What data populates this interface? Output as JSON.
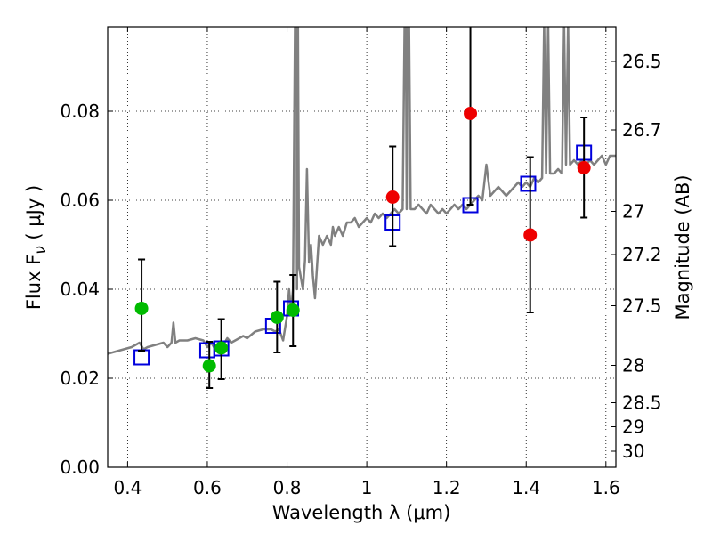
{
  "chart_data": {
    "type": "scatter",
    "xlabel": "Wavelength  λ (μm)",
    "ylabel": "Flux  F",
    "ylabel_subscript": "ν",
    "ylabel_unit": "  ( μJy )",
    "y2label": "Magnitude (AB)",
    "xlim": [
      0.35,
      1.625
    ],
    "ylim": [
      0.0,
      0.099
    ],
    "xticks": [
      0.4,
      0.6,
      0.8,
      1.0,
      1.2,
      1.4,
      1.6
    ],
    "xtick_labels": [
      "0.4",
      "0.6",
      "0.8",
      "1",
      "1.2",
      "1.4",
      "1.6"
    ],
    "yticks": [
      0.0,
      0.02,
      0.04,
      0.06,
      0.08
    ],
    "ytick_labels": [
      "0.00",
      "0.02",
      "0.04",
      "0.06",
      "0.08"
    ],
    "y2ticks": [
      {
        "label": "26.5",
        "flux": 0.0912
      },
      {
        "label": "26.7",
        "flux": 0.0758
      },
      {
        "label": "27",
        "flux": 0.0575
      },
      {
        "label": "27.2",
        "flux": 0.0478
      },
      {
        "label": "27.5",
        "flux": 0.0363
      },
      {
        "label": "28",
        "flux": 0.0229
      },
      {
        "label": "28.5",
        "flux": 0.0145
      },
      {
        "label": "29",
        "flux": 0.0091
      },
      {
        "label": "30",
        "flux": 0.0036
      }
    ],
    "grid": true,
    "colors": {
      "model_line": "#808080",
      "green_points": "#00bb00",
      "red_points": "#ee0000",
      "model_boxes": "#0000dd",
      "errorbar": "#000000"
    },
    "series": [
      {
        "kind": "line",
        "x": [
          0.35,
          0.37,
          0.39,
          0.41,
          0.43,
          0.44,
          0.45,
          0.47,
          0.49,
          0.5,
          0.51,
          0.515,
          0.52,
          0.53,
          0.55,
          0.57,
          0.59,
          0.6,
          0.61,
          0.62,
          0.63,
          0.64,
          0.65,
          0.66,
          0.67,
          0.68,
          0.69,
          0.7,
          0.72,
          0.74,
          0.76,
          0.77,
          0.78,
          0.79,
          0.8,
          0.805,
          0.81,
          0.815,
          0.82,
          0.8235,
          0.825,
          0.826,
          0.8275,
          0.83,
          0.84,
          0.845,
          0.85,
          0.855,
          0.86,
          0.865,
          0.87,
          0.88,
          0.89,
          0.9,
          0.91,
          0.915,
          0.92,
          0.93,
          0.94,
          0.95,
          0.96,
          0.97,
          0.98,
          0.99,
          1.0,
          1.01,
          1.02,
          1.03,
          1.04,
          1.05,
          1.06,
          1.07,
          1.08,
          1.09,
          1.095,
          1.098,
          1.1,
          1.103,
          1.106,
          1.11,
          1.12,
          1.13,
          1.14,
          1.15,
          1.16,
          1.17,
          1.18,
          1.19,
          1.2,
          1.21,
          1.22,
          1.23,
          1.24,
          1.25,
          1.26,
          1.27,
          1.28,
          1.29,
          1.3,
          1.31,
          1.32,
          1.33,
          1.34,
          1.35,
          1.36,
          1.37,
          1.38,
          1.39,
          1.4,
          1.41,
          1.42,
          1.43,
          1.44,
          1.445,
          1.45,
          1.455,
          1.46,
          1.47,
          1.48,
          1.49,
          1.495,
          1.5,
          1.505,
          1.51,
          1.52,
          1.53,
          1.54,
          1.55,
          1.56,
          1.57,
          1.58,
          1.59,
          1.6,
          1.61,
          1.62,
          1.625
        ],
        "y": [
          0.0255,
          0.026,
          0.0265,
          0.027,
          0.028,
          0.0265,
          0.027,
          0.0275,
          0.028,
          0.027,
          0.028,
          0.0325,
          0.028,
          0.0285,
          0.0285,
          0.029,
          0.0285,
          0.027,
          0.028,
          0.0265,
          0.028,
          0.0275,
          0.029,
          0.028,
          0.0285,
          0.029,
          0.0295,
          0.029,
          0.0305,
          0.031,
          0.031,
          0.0305,
          0.031,
          0.0285,
          0.034,
          0.04,
          0.035,
          0.04,
          0.1,
          0.1,
          0.04,
          0.1,
          0.1,
          0.045,
          0.04,
          0.0465,
          0.067,
          0.046,
          0.05,
          0.043,
          0.038,
          0.052,
          0.05,
          0.052,
          0.05,
          0.054,
          0.052,
          0.054,
          0.052,
          0.055,
          0.055,
          0.056,
          0.054,
          0.055,
          0.056,
          0.055,
          0.057,
          0.056,
          0.057,
          0.056,
          0.057,
          0.058,
          0.057,
          0.058,
          0.1,
          0.1,
          0.058,
          0.1,
          0.1,
          0.058,
          0.058,
          0.059,
          0.058,
          0.057,
          0.059,
          0.058,
          0.057,
          0.058,
          0.057,
          0.058,
          0.059,
          0.058,
          0.059,
          0.058,
          0.059,
          0.06,
          0.061,
          0.06,
          0.068,
          0.061,
          0.062,
          0.063,
          0.062,
          0.061,
          0.062,
          0.063,
          0.064,
          0.063,
          0.064,
          0.063,
          0.065,
          0.064,
          0.065,
          0.1,
          0.066,
          0.1,
          0.066,
          0.066,
          0.067,
          0.066,
          0.1,
          0.068,
          0.1,
          0.068,
          0.069,
          0.068,
          0.069,
          0.068,
          0.069,
          0.068,
          0.069,
          0.07,
          0.068,
          0.07,
          0.07,
          0.07
        ]
      },
      {
        "kind": "points",
        "style": "green-circle",
        "x": [
          0.435,
          0.605,
          0.635,
          0.775,
          0.815
        ],
        "y": [
          0.0357,
          0.0228,
          0.0268,
          0.0337,
          0.0353
        ],
        "err_low": [
          0.0262,
          0.0178,
          0.0198,
          0.0258,
          0.0272
        ],
        "err_high": [
          0.0467,
          0.0282,
          0.0333,
          0.0417,
          0.0432
        ]
      },
      {
        "kind": "points",
        "style": "red-circle",
        "x": [
          1.065,
          1.26,
          1.41,
          1.545
        ],
        "y": [
          0.0607,
          0.0795,
          0.0522,
          0.0673
        ],
        "err_low": [
          0.0497,
          0.059,
          0.0348,
          0.0561
        ],
        "err_high": [
          0.0721,
          0.1,
          0.0697,
          0.0786
        ]
      },
      {
        "kind": "boxes",
        "style": "blue-square",
        "x": [
          0.435,
          0.6,
          0.635,
          0.765,
          0.81,
          1.065,
          1.26,
          1.405,
          1.545
        ],
        "y": [
          0.0247,
          0.0263,
          0.0267,
          0.0318,
          0.0357,
          0.055,
          0.0589,
          0.0637,
          0.0707
        ]
      }
    ]
  }
}
